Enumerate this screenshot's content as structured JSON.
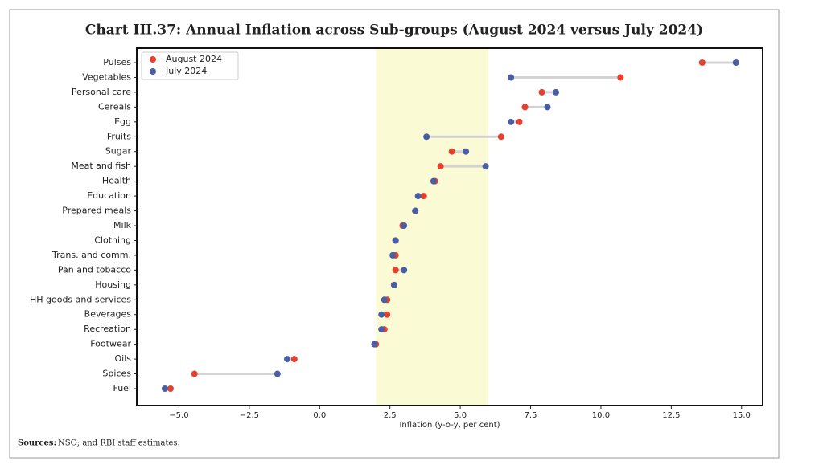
{
  "chart_data": {
    "type": "dumbbell",
    "title": "Chart III.37: Annual Inflation across Sub-groups (August 2024 versus July 2024)",
    "categories": [
      "Pulses",
      "Vegetables",
      "Personal care",
      "Cereals",
      "Egg",
      "Fruits",
      "Sugar",
      "Meat and fish",
      "Health",
      "Education",
      "Prepared meals",
      "Milk",
      "Clothing",
      "Trans. and comm.",
      "Pan and tobacco",
      "Housing",
      "HH goods and services",
      "Beverages",
      "Recreation",
      "Footwear",
      "Oils",
      "Spices",
      "Fuel"
    ],
    "series": [
      {
        "name": "August 2024",
        "color": "#e5412e",
        "values": [
          13.6,
          10.7,
          7.9,
          7.3,
          7.1,
          6.45,
          4.7,
          4.3,
          4.1,
          3.7,
          3.4,
          2.95,
          2.7,
          2.7,
          2.7,
          2.65,
          2.4,
          2.4,
          2.3,
          2.0,
          -0.9,
          -4.45,
          -5.3
        ]
      },
      {
        "name": "July 2024",
        "color": "#4a5ea6",
        "values": [
          14.8,
          6.8,
          8.4,
          8.1,
          6.8,
          3.8,
          5.2,
          5.9,
          4.05,
          3.5,
          3.4,
          3.0,
          2.7,
          2.6,
          3.0,
          2.65,
          2.3,
          2.2,
          2.2,
          1.95,
          -1.15,
          -1.5,
          -5.5
        ]
      }
    ],
    "xlabel": "Inflation (y-o-y, per cent)",
    "xlim": [
      -6.5,
      15.75
    ],
    "xticks": [
      {
        "value": -5,
        "label": "−5.0"
      },
      {
        "value": -2.5,
        "label": "−2.5"
      },
      {
        "value": 0,
        "label": "0.0"
      },
      {
        "value": 2.5,
        "label": "2.5"
      },
      {
        "value": 5,
        "label": "5.0"
      },
      {
        "value": 7.5,
        "label": "7.5"
      },
      {
        "value": 10,
        "label": "10.0"
      },
      {
        "value": 12.5,
        "label": "12.5"
      },
      {
        "value": 15,
        "label": "15.0"
      }
    ],
    "highlight_range": [
      2,
      6
    ],
    "highlight_color": "#fafad4",
    "legend": "upper left",
    "source_label": "Sources:",
    "source": "NSO; and RBI staff estimates."
  }
}
